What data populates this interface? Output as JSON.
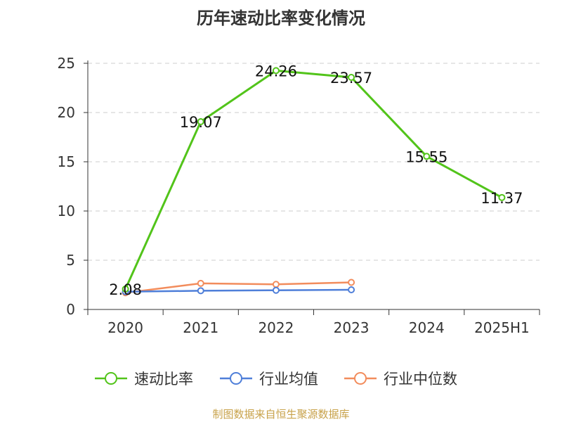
{
  "title": "历年速动比率变化情况",
  "source": "制图数据来自恒生聚源数据库",
  "colors": {
    "series1": "#52c41a",
    "series2": "#4f7fd9",
    "series3": "#f28c5c",
    "grid": "#cccccc",
    "axis": "#333333"
  },
  "chart_data": {
    "type": "line",
    "title": "历年速动比率变化情况",
    "categories": [
      "2020",
      "2021",
      "2022",
      "2023",
      "2024",
      "2025H1"
    ],
    "ylim": [
      0,
      25
    ],
    "yticks": [
      0,
      5,
      10,
      15,
      20,
      25
    ],
    "grid": true,
    "legend_position": "bottom",
    "series": [
      {
        "name": "速动比率",
        "values": [
          2.08,
          19.07,
          24.26,
          23.57,
          15.55,
          11.37
        ],
        "labels": [
          "2.08",
          "19.07",
          "24.26",
          "23.57",
          "15.55",
          "11.37"
        ],
        "color": "#52c41a"
      },
      {
        "name": "行业均值",
        "values": [
          1.8,
          1.9,
          1.95,
          2.0,
          null,
          null
        ],
        "color": "#4f7fd9"
      },
      {
        "name": "行业中位数",
        "values": [
          1.7,
          2.65,
          2.55,
          2.75,
          null,
          null
        ],
        "color": "#f28c5c"
      }
    ]
  }
}
